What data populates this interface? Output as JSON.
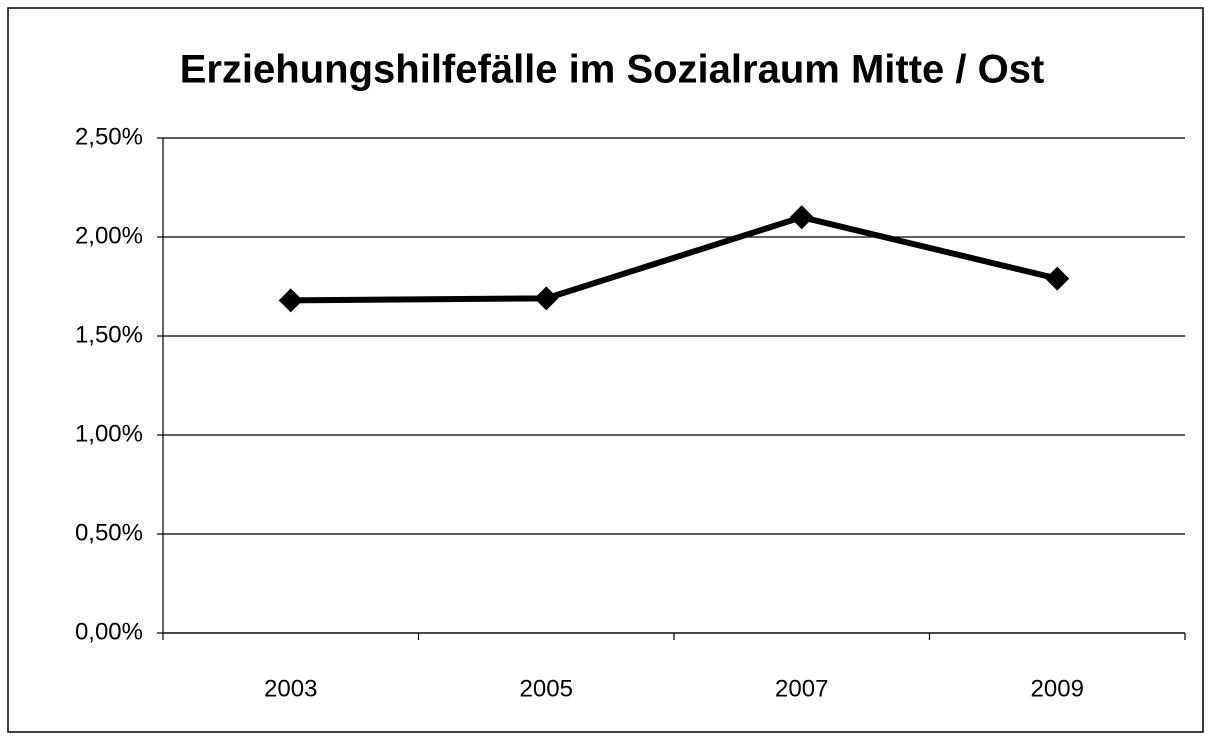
{
  "chart_data": {
    "type": "line",
    "title": "Erziehungshilfefälle im Sozialraum Mitte / Ost",
    "categories": [
      "2003",
      "2005",
      "2007",
      "2009"
    ],
    "series": [
      {
        "name": null,
        "color": "#000000",
        "values": [
          1.68,
          1.69,
          2.1,
          1.79
        ]
      }
    ],
    "ylim": [
      0,
      2.5
    ],
    "yticks": [
      {
        "value": 0,
        "label": "0,00%"
      },
      {
        "value": 0.5,
        "label": "0,50%"
      },
      {
        "value": 1,
        "label": "1,00%"
      },
      {
        "value": 1.5,
        "label": "1,50%"
      },
      {
        "value": 2,
        "label": "2,00%"
      },
      {
        "value": 2.5,
        "label": "2,50%"
      }
    ],
    "grid": true,
    "legend": false
  }
}
